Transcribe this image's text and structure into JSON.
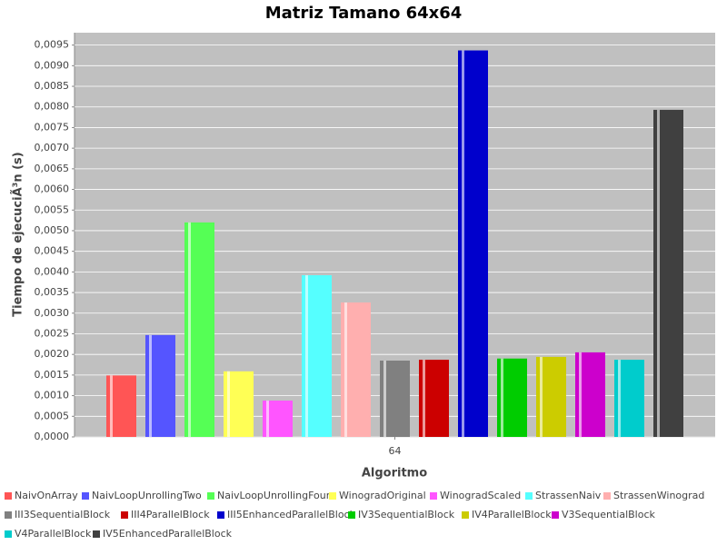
{
  "chart_data": {
    "type": "bar",
    "title": "Matriz Tamano 64x64",
    "x_label": "Algoritmo",
    "y_label": "Tiempo de ejecuciÃ³n (s)",
    "categories": [
      "64"
    ],
    "ylim": [
      0,
      0.0098
    ],
    "yticks": [
      {
        "value": 0,
        "label": "0,0000"
      },
      {
        "value": 0.0005,
        "label": "0,0005"
      },
      {
        "value": 0.001,
        "label": "0,0010"
      },
      {
        "value": 0.0015,
        "label": "0,0015"
      },
      {
        "value": 0.002,
        "label": "0,0020"
      },
      {
        "value": 0.0025,
        "label": "0,0025"
      },
      {
        "value": 0.003,
        "label": "0,0030"
      },
      {
        "value": 0.0035,
        "label": "0,0035"
      },
      {
        "value": 0.004,
        "label": "0,0040"
      },
      {
        "value": 0.0045,
        "label": "0,0045"
      },
      {
        "value": 0.005,
        "label": "0,0050"
      },
      {
        "value": 0.0055,
        "label": "0,0055"
      },
      {
        "value": 0.006,
        "label": "0,0060"
      },
      {
        "value": 0.0065,
        "label": "0,0065"
      },
      {
        "value": 0.007,
        "label": "0,0070"
      },
      {
        "value": 0.0075,
        "label": "0,0075"
      },
      {
        "value": 0.008,
        "label": "0,0080"
      },
      {
        "value": 0.0085,
        "label": "0,0085"
      },
      {
        "value": 0.009,
        "label": "0,0090"
      },
      {
        "value": 0.0095,
        "label": "0,0095"
      }
    ],
    "grid": true,
    "legend": "bottom",
    "series": [
      {
        "name": "NaivOnArray",
        "color": "#ff5555",
        "values": [
          0.00149
        ]
      },
      {
        "name": "NaivLoopUnrollingTwo",
        "color": "#5555ff",
        "values": [
          0.00247
        ]
      },
      {
        "name": "NaivLoopUnrollingFour",
        "color": "#55ff55",
        "values": [
          0.0052
        ]
      },
      {
        "name": "WinogradOriginal",
        "color": "#ffff55",
        "values": [
          0.00159
        ]
      },
      {
        "name": "WinogradScaled",
        "color": "#ff55ff",
        "values": [
          0.00088
        ]
      },
      {
        "name": "StrassenNaiv",
        "color": "#55ffff",
        "values": [
          0.00392
        ]
      },
      {
        "name": "StrassenWinograd",
        "color": "#ffafaf",
        "values": [
          0.00326
        ]
      },
      {
        "name": "III3SequentialBlock",
        "color": "#808080",
        "values": [
          0.00185
        ]
      },
      {
        "name": "III4ParallelBlock",
        "color": "#cc0000",
        "values": [
          0.00187
        ]
      },
      {
        "name": "III5EnhancedParallelBlock",
        "color": "#0000cc",
        "values": [
          0.00937
        ]
      },
      {
        "name": "IV3SequentialBlock",
        "color": "#00cc00",
        "values": [
          0.0019
        ]
      },
      {
        "name": "IV4ParallelBlock",
        "color": "#cccc00",
        "values": [
          0.00194
        ]
      },
      {
        "name": "V3SequentialBlock",
        "color": "#cc00cc",
        "values": [
          0.00205
        ]
      },
      {
        "name": "V4ParallelBlock",
        "color": "#00cccc",
        "values": [
          0.00187
        ]
      },
      {
        "name": "IV5EnhancedParallelBlock",
        "color": "#404040",
        "values": [
          0.00793
        ]
      }
    ]
  }
}
